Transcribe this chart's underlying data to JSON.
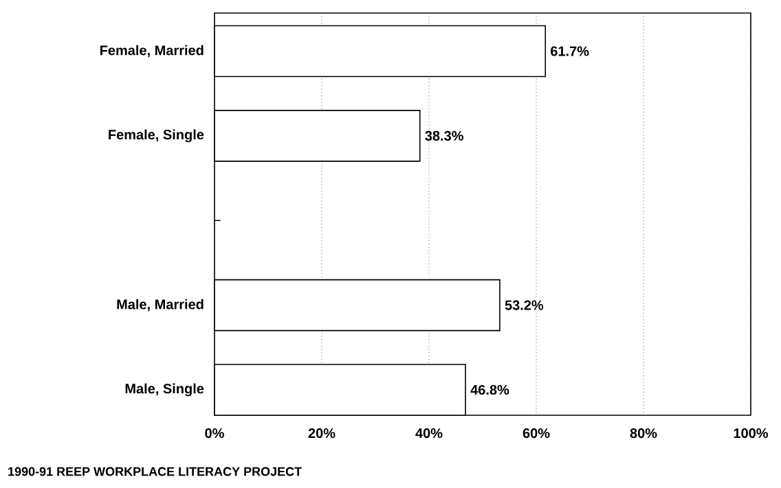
{
  "chart_data": {
    "type": "bar",
    "orientation": "horizontal",
    "categories": [
      "Female, Married",
      "Female, Single",
      null,
      "Male, Married",
      "Male, Single"
    ],
    "values": [
      61.7,
      38.3,
      null,
      53.2,
      46.8
    ],
    "value_labels": [
      "61.7%",
      "38.3%",
      null,
      "53.2%",
      "46.8%"
    ],
    "color": "#ffffff",
    "xlim": [
      0,
      100
    ],
    "xticks": [
      {
        "value": 0,
        "label": "0%"
      },
      {
        "value": 20,
        "label": "20%"
      },
      {
        "value": 40,
        "label": "40%"
      },
      {
        "value": 60,
        "label": "60%"
      },
      {
        "value": 80,
        "label": "80%"
      },
      {
        "value": 100,
        "label": "100%"
      }
    ],
    "grid": "x",
    "annotations": [
      "1990-91 REEP WORKPLACE LITERACY PROJECT"
    ]
  }
}
